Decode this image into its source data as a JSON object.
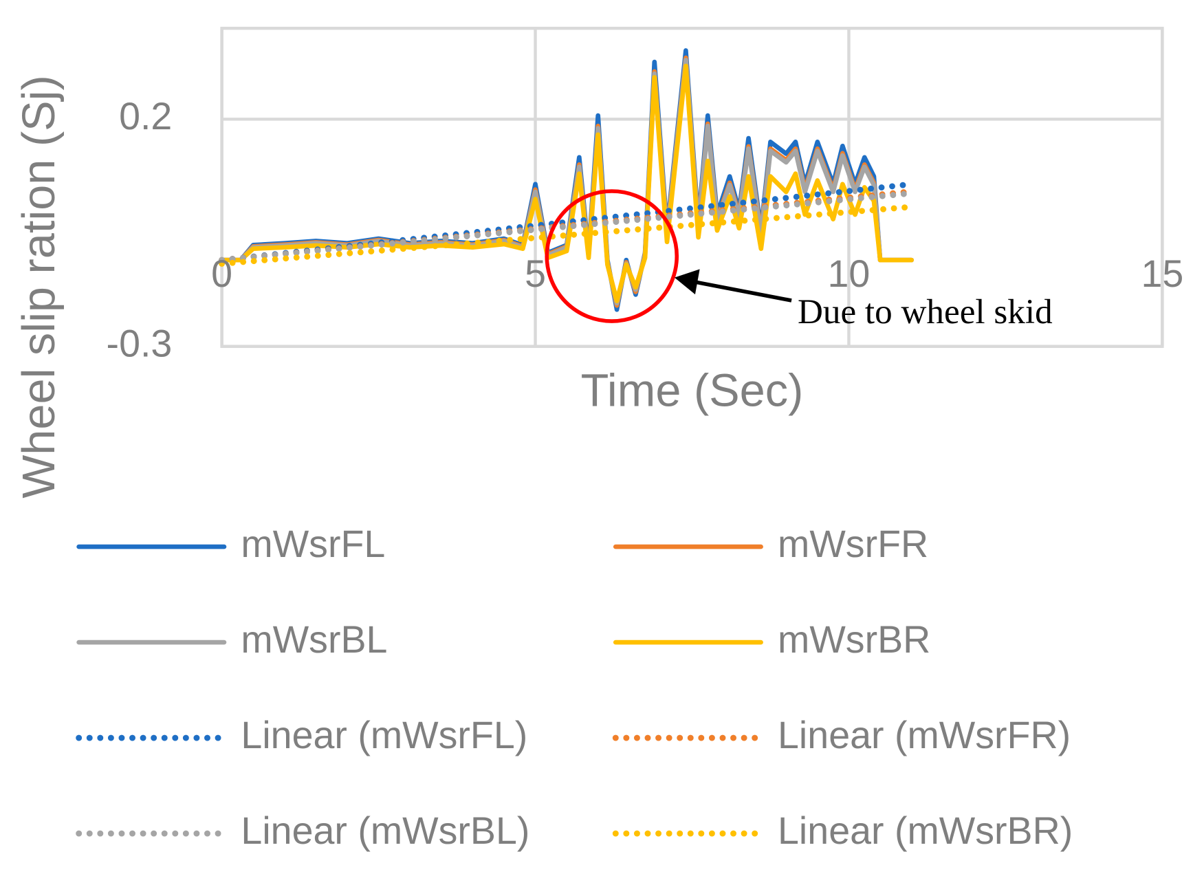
{
  "chart_data": {
    "type": "line",
    "x_label": "Time (Sec)",
    "y_label": "Wheel slip ration (Sj)",
    "xlim": [
      0,
      15
    ],
    "xticks": [
      0,
      5,
      10,
      15
    ],
    "ylim": [
      -0.3,
      0.4
    ],
    "yticks": [
      -0.3,
      0.2
    ],
    "grid": true,
    "legend": "bottom",
    "annotations": [
      "Due to wheel skid"
    ],
    "x": [
      0,
      0.3,
      0.5,
      1,
      1.5,
      2,
      2.5,
      3,
      3.5,
      4,
      4.5,
      4.8,
      5.0,
      5.2,
      5.5,
      5.7,
      5.85,
      6.0,
      6.15,
      6.3,
      6.45,
      6.6,
      6.75,
      6.9,
      7.1,
      7.4,
      7.6,
      7.75,
      7.9,
      8.1,
      8.25,
      8.4,
      8.6,
      8.75,
      9.0,
      9.15,
      9.3,
      9.5,
      9.75,
      9.9,
      10.1,
      10.25,
      10.4,
      10.5,
      11
    ],
    "series": [
      {
        "name": "mWsrFL",
        "color": "#1f6fc5",
        "dash": "solid",
        "values": [
          -0.11,
          -0.11,
          -0.077,
          -0.073,
          -0.068,
          -0.073,
          -0.063,
          -0.073,
          -0.068,
          -0.073,
          -0.063,
          -0.077,
          0.057,
          -0.094,
          -0.077,
          0.116,
          -0.094,
          0.208,
          -0.11,
          -0.219,
          -0.11,
          -0.186,
          -0.094,
          0.326,
          -0.043,
          0.351,
          -0.027,
          0.208,
          -0.01,
          0.074,
          -0.001,
          0.158,
          -0.043,
          0.15,
          0.124,
          0.15,
          0.057,
          0.15,
          0.057,
          0.141,
          0.057,
          0.116,
          0.074,
          -0.11,
          -0.11
        ]
      },
      {
        "name": "mWsrFR",
        "color": "#f07f2a",
        "dash": "solid",
        "values": [
          -0.11,
          -0.11,
          -0.08,
          -0.076,
          -0.071,
          -0.076,
          -0.066,
          -0.076,
          -0.071,
          -0.076,
          -0.066,
          -0.08,
          0.045,
          -0.097,
          -0.08,
          0.1,
          -0.097,
          0.185,
          -0.115,
          -0.21,
          -0.115,
          -0.18,
          -0.097,
          0.305,
          -0.05,
          0.335,
          -0.035,
          0.19,
          -0.02,
          0.06,
          -0.01,
          0.14,
          -0.05,
          0.135,
          0.11,
          0.135,
          0.045,
          0.135,
          0.045,
          0.125,
          0.045,
          0.1,
          0.06,
          -0.11,
          -0.11
        ]
      },
      {
        "name": "mWsrBL",
        "color": "#a5a5a5",
        "dash": "solid",
        "values": [
          -0.11,
          -0.11,
          -0.082,
          -0.078,
          -0.073,
          -0.078,
          -0.068,
          -0.078,
          -0.073,
          -0.078,
          -0.068,
          -0.082,
          0.04,
          -0.1,
          -0.082,
          0.095,
          -0.1,
          0.18,
          -0.118,
          -0.205,
          -0.118,
          -0.175,
          -0.1,
          0.3,
          -0.055,
          0.33,
          -0.04,
          0.185,
          -0.025,
          0.055,
          -0.015,
          0.135,
          -0.055,
          0.13,
          0.105,
          0.13,
          0.04,
          0.13,
          0.04,
          0.12,
          0.04,
          0.095,
          0.055,
          -0.11,
          -0.11
        ]
      },
      {
        "name": "mWsrBR",
        "color": "#ffc000",
        "dash": "solid",
        "values": [
          -0.11,
          -0.11,
          -0.085,
          -0.082,
          -0.078,
          -0.082,
          -0.075,
          -0.082,
          -0.078,
          -0.082,
          -0.075,
          -0.085,
          0.024,
          -0.105,
          -0.09,
          0.08,
          -0.105,
          0.166,
          -0.12,
          -0.2,
          -0.12,
          -0.17,
          -0.105,
          0.292,
          -0.07,
          0.317,
          -0.06,
          0.108,
          -0.045,
          0.03,
          -0.04,
          0.074,
          -0.085,
          0.074,
          0.04,
          0.08,
          -0.01,
          0.065,
          -0.02,
          0.057,
          -0.01,
          0.05,
          0.02,
          -0.11,
          -0.11
        ]
      },
      {
        "name": "Linear (mWsrFL)",
        "color": "#1f6fc5",
        "dash": "dotted",
        "x": [
          0,
          11
        ],
        "values": [
          -0.11,
          0.057
        ]
      },
      {
        "name": "Linear (mWsrFR)",
        "color": "#f07f2a",
        "dash": "dotted",
        "x": [
          0,
          11
        ],
        "values": [
          -0.11,
          0.041
        ]
      },
      {
        "name": "Linear (mWsrBL)",
        "color": "#a5a5a5",
        "dash": "dotted",
        "x": [
          0,
          11
        ],
        "values": [
          -0.11,
          0.037
        ]
      },
      {
        "name": "Linear (mWsrBR)",
        "color": "#ffc000",
        "dash": "dotted",
        "x": [
          0,
          11
        ],
        "values": [
          -0.118,
          0.007
        ]
      }
    ]
  }
}
